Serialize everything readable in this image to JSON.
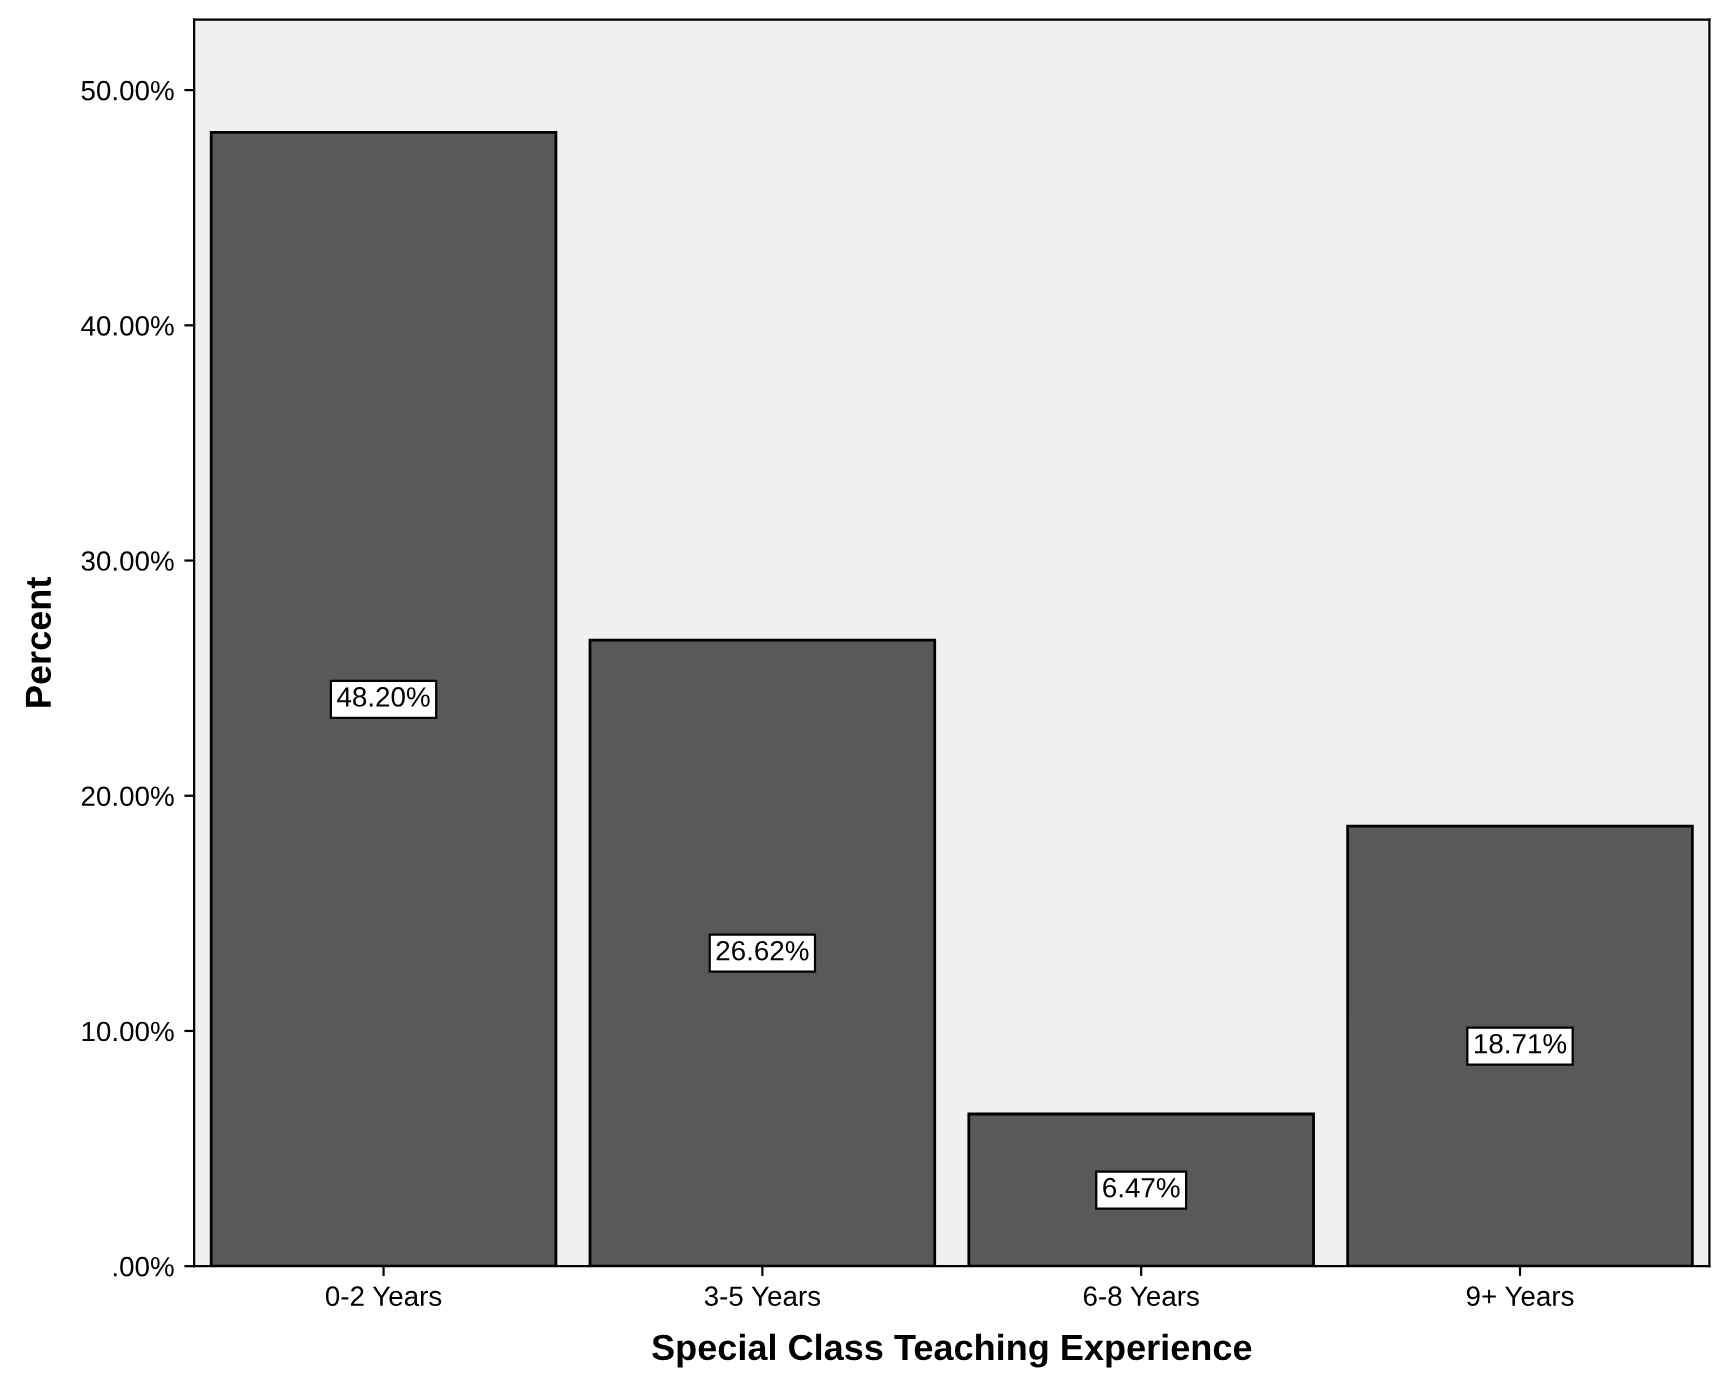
{
  "chart_data": {
    "type": "bar",
    "xlabel": "Special Class Teaching Experience",
    "ylabel": "Percent",
    "categories": [
      "0-2 Years",
      "3-5 Years",
      "6-8 Years",
      "9+ Years"
    ],
    "values": [
      48.2,
      26.62,
      6.47,
      18.71
    ],
    "value_labels": [
      "48.20%",
      "26.62%",
      "6.47%",
      "18.71%"
    ],
    "color": "#595959",
    "ylim": [
      0,
      53
    ],
    "yticks": [
      {
        "value": 0,
        "label": ".00%"
      },
      {
        "value": 10,
        "label": "10.00%"
      },
      {
        "value": 20,
        "label": "20.00%"
      },
      {
        "value": 30,
        "label": "30.00%"
      },
      {
        "value": 40,
        "label": "40.00%"
      },
      {
        "value": 50,
        "label": "50.00%"
      }
    ],
    "grid": false,
    "legend": false
  }
}
